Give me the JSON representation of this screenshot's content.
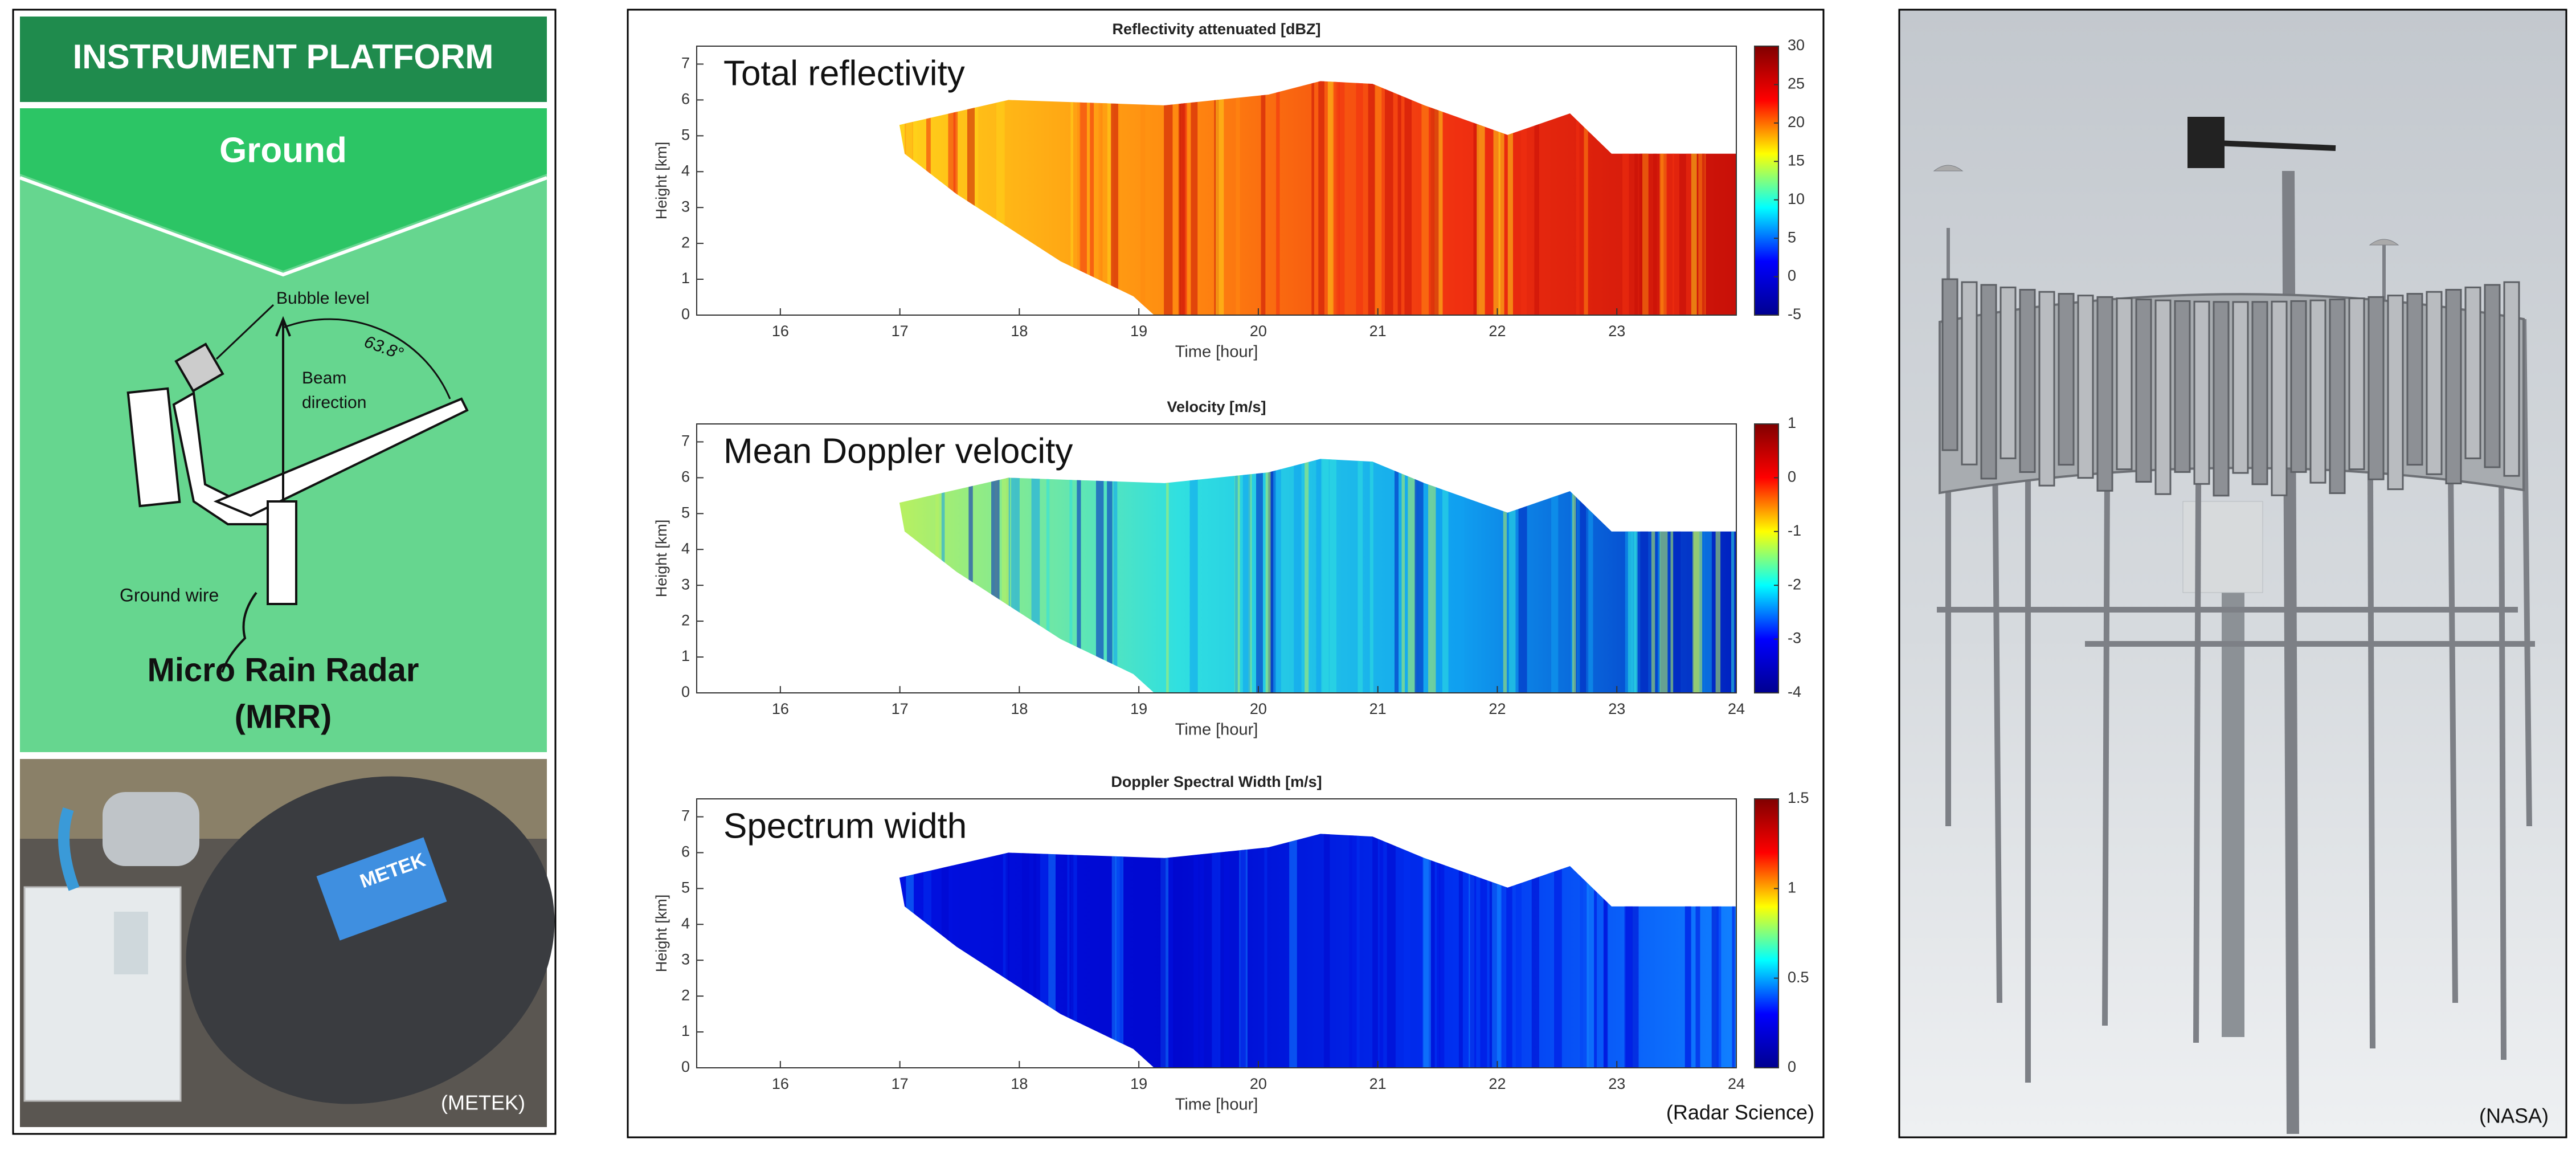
{
  "left_panel": {
    "header": "INSTRUMENT PLATFORM",
    "banner": "Ground",
    "diagram": {
      "bubble_level": "Bubble level",
      "angle": "63.8°",
      "beam": [
        "Beam",
        "direction"
      ],
      "ground_wire": "Ground wire"
    },
    "name": [
      "Micro Rain Radar",
      "(MRR)"
    ],
    "photo_brand": "METEK",
    "credit": "(METEK)"
  },
  "chart_data": [
    {
      "type": "heatmap",
      "title": "Reflectivity attenuated [dBZ]",
      "annotation": "Total reflectivity",
      "xlabel": "Time [hour]",
      "ylabel": "Height [km]",
      "xlim": [
        15.3,
        24
      ],
      "ylim": [
        0,
        7.5
      ],
      "xticks": [
        16,
        17,
        18,
        19,
        20,
        21,
        22,
        23
      ],
      "yticks": [
        0,
        1,
        2,
        3,
        4,
        5,
        6,
        7
      ],
      "fill_colors": [
        "#ffd21a",
        "#ff8a10",
        "#f03010",
        "#c81008"
      ],
      "colorbar": {
        "lim": [
          -5,
          30
        ],
        "ticks": [
          -5,
          0,
          5,
          10,
          15,
          20,
          25,
          30
        ],
        "colors": [
          "#00008f",
          "#0000ff",
          "#00ffff",
          "#ffff00",
          "#ff0000",
          "#800000"
        ]
      }
    },
    {
      "type": "heatmap",
      "title": "Velocity [m/s]",
      "annotation": "Mean Doppler velocity",
      "xlabel": "Time [hour]",
      "ylabel": "Height [km]",
      "xlim": [
        15.3,
        24
      ],
      "ylim": [
        0,
        7.5
      ],
      "xticks": [
        16,
        17,
        18,
        19,
        20,
        21,
        22,
        23,
        24
      ],
      "yticks": [
        0,
        1,
        2,
        3,
        4,
        5,
        6,
        7
      ],
      "fill_colors": [
        "#b8f060",
        "#30e0e0",
        "#10a0f0",
        "#0020c0"
      ],
      "colorbar": {
        "lim": [
          -4,
          1
        ],
        "ticks": [
          -4,
          -3,
          -2,
          -1,
          0,
          1
        ],
        "colors": [
          "#00008f",
          "#0000ff",
          "#00ffff",
          "#ffff00",
          "#ff0000",
          "#800000"
        ]
      }
    },
    {
      "type": "heatmap",
      "title": "Doppler Spectral Width [m/s]",
      "annotation": "Spectrum width",
      "xlabel": "Time [hour]",
      "ylabel": "Height [km]",
      "xlim": [
        15.3,
        24
      ],
      "ylim": [
        0,
        7.5
      ],
      "xticks": [
        16,
        17,
        18,
        19,
        20,
        21,
        22,
        23,
        24
      ],
      "yticks": [
        0,
        1,
        2,
        3,
        4,
        5,
        6,
        7
      ],
      "fill_colors": [
        "#0010e0",
        "#0008d0",
        "#0030f0",
        "#1080ff"
      ],
      "colorbar": {
        "lim": [
          0,
          1.5
        ],
        "ticks": [
          0,
          0.5,
          1,
          1.5
        ],
        "colors": [
          "#00008f",
          "#0000ff",
          "#00ffff",
          "#ffff00",
          "#ff0000",
          "#800000"
        ]
      }
    }
  ],
  "center_credit": "(Radar Science)",
  "right_panel": {
    "credit": "(NASA)"
  }
}
